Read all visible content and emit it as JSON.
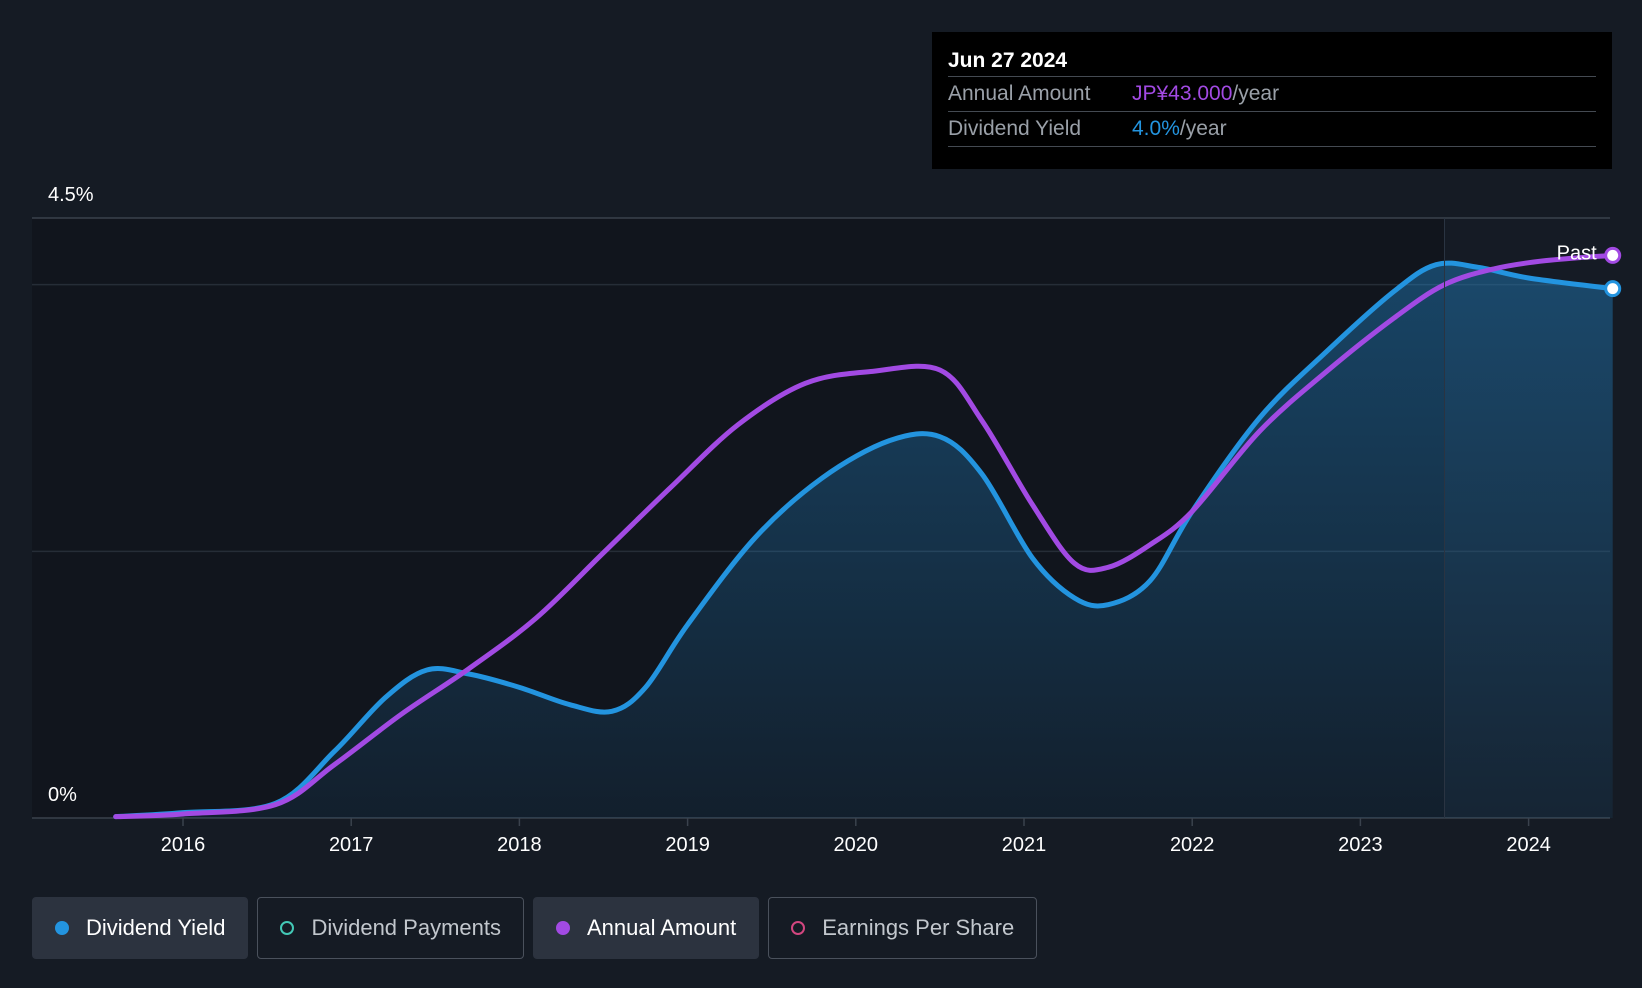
{
  "chart_data": {
    "type": "line",
    "y_axis": {
      "top_label": "4.5%",
      "bottom_label": "0%",
      "min": 0,
      "max": 4.5
    },
    "x_ticks": [
      "2016",
      "2017",
      "2018",
      "2019",
      "2020",
      "2021",
      "2022",
      "2023",
      "2024"
    ],
    "x_range": [
      2015.5,
      2024.5
    ],
    "future_marker_x": 2023.5,
    "grid": true,
    "series": [
      {
        "name": "Dividend Yield",
        "color": "#2394df",
        "filled": true,
        "points": [
          [
            2015.6,
            0.01
          ],
          [
            2016.0,
            0.04
          ],
          [
            2016.55,
            0.11
          ],
          [
            2016.9,
            0.5
          ],
          [
            2017.2,
            0.9
          ],
          [
            2017.45,
            1.11
          ],
          [
            2017.7,
            1.08
          ],
          [
            2018.0,
            0.98
          ],
          [
            2018.3,
            0.85
          ],
          [
            2018.55,
            0.8
          ],
          [
            2018.75,
            0.98
          ],
          [
            2019.0,
            1.45
          ],
          [
            2019.4,
            2.1
          ],
          [
            2019.8,
            2.55
          ],
          [
            2020.2,
            2.83
          ],
          [
            2020.5,
            2.86
          ],
          [
            2020.75,
            2.58
          ],
          [
            2021.05,
            1.95
          ],
          [
            2021.3,
            1.65
          ],
          [
            2021.5,
            1.6
          ],
          [
            2021.75,
            1.78
          ],
          [
            2022.0,
            2.3
          ],
          [
            2022.4,
            3.0
          ],
          [
            2022.8,
            3.5
          ],
          [
            2023.2,
            3.95
          ],
          [
            2023.45,
            4.15
          ],
          [
            2023.7,
            4.13
          ],
          [
            2024.0,
            4.05
          ],
          [
            2024.5,
            3.97
          ]
        ]
      },
      {
        "name": "Annual Amount",
        "color": "#a24ae3",
        "filled": false,
        "points": [
          [
            2015.6,
            0.01
          ],
          [
            2016.0,
            0.03
          ],
          [
            2016.55,
            0.1
          ],
          [
            2016.9,
            0.4
          ],
          [
            2017.3,
            0.78
          ],
          [
            2017.7,
            1.12
          ],
          [
            2018.1,
            1.5
          ],
          [
            2018.5,
            1.99
          ],
          [
            2018.9,
            2.48
          ],
          [
            2019.3,
            2.95
          ],
          [
            2019.7,
            3.26
          ],
          [
            2020.1,
            3.35
          ],
          [
            2020.5,
            3.36
          ],
          [
            2020.75,
            2.98
          ],
          [
            2021.05,
            2.35
          ],
          [
            2021.3,
            1.91
          ],
          [
            2021.5,
            1.88
          ],
          [
            2021.75,
            2.05
          ],
          [
            2022.0,
            2.3
          ],
          [
            2022.4,
            2.9
          ],
          [
            2022.8,
            3.35
          ],
          [
            2023.2,
            3.75
          ],
          [
            2023.5,
            4.0
          ],
          [
            2023.8,
            4.12
          ],
          [
            2024.1,
            4.18
          ],
          [
            2024.5,
            4.22
          ]
        ]
      }
    ],
    "end_label": "Past"
  },
  "tooltip": {
    "date": "Jun 27 2024",
    "rows": [
      {
        "label": "Annual Amount",
        "value": "JP¥43.000",
        "unit": "/year",
        "color": "#a24ae3"
      },
      {
        "label": "Dividend Yield",
        "value": "4.0%",
        "unit": "/year",
        "color": "#2394df"
      }
    ]
  },
  "legend": [
    {
      "label": "Dividend Yield",
      "color": "#2394df",
      "active": true,
      "hollow": false
    },
    {
      "label": "Dividend Payments",
      "color": "#43c8b6",
      "active": false,
      "hollow": true
    },
    {
      "label": "Annual Amount",
      "color": "#a24ae3",
      "active": true,
      "hollow": false
    },
    {
      "label": "Earnings Per Share",
      "color": "#d2467f",
      "active": false,
      "hollow": true
    }
  ]
}
